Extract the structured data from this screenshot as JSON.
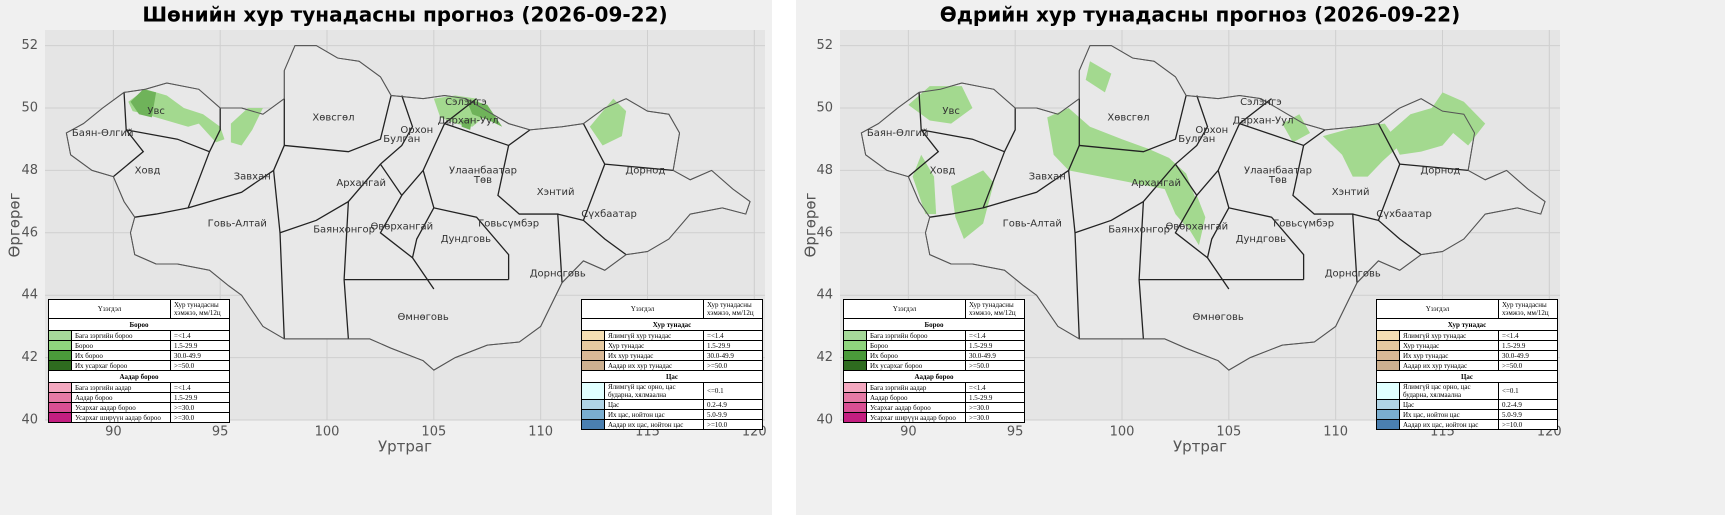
{
  "panels": [
    {
      "title": "Шөнийн хур тунадасны прогноз (2026-09-22)",
      "xlabel": "Уртраг",
      "ylabel": "Өргөрөг",
      "xlim": [
        86.8,
        120.5
      ],
      "ylim": [
        40,
        52.5
      ],
      "xticks": [
        90,
        95,
        100,
        105,
        110,
        115,
        120
      ],
      "yticks": [
        40,
        42,
        44,
        46,
        48,
        50,
        52
      ],
      "grid": true
    },
    {
      "title": "Өдрийн хур тунадасны прогноз (2026-09-22)",
      "xlabel": "Уртраг",
      "ylabel": "Өргөрөг",
      "xlim": [
        86.8,
        120.5
      ],
      "ylim": [
        40,
        52.5
      ],
      "xticks": [
        90,
        95,
        100,
        105,
        110,
        115,
        120
      ],
      "yticks": [
        40,
        42,
        44,
        46,
        48,
        50,
        52
      ],
      "grid": true
    }
  ],
  "regions": [
    "Увс",
    "Баян-Өлгий",
    "Ховд",
    "Завхан",
    "Хөвсгөл",
    "Сэлэнгэ",
    "Орхон",
    "Дархан-Уул",
    "Булган",
    "Архангай",
    "Улаанбаатар",
    "Төв",
    "Хэнтий",
    "Дорнод",
    "Сүхбаатар",
    "Говь-Алтай",
    "Баянхонгор",
    "Өвөрхангай",
    "Говьсүмбэр",
    "Дундговь",
    "Дорноговь",
    "Өмнөговь"
  ],
  "legend_rain": {
    "header": [
      "Үзэгдэл",
      "Хур тунадасны хэмжээ, мм/12ц"
    ],
    "groups": [
      {
        "title": "Бороо",
        "items": [
          {
            "label": "Бага зэргийн бороо",
            "range": "=<1.4",
            "color": "#a6d99a"
          },
          {
            "label": "Бороо",
            "range": "1.5-29.9",
            "color": "#8fd47e"
          },
          {
            "label": "Их бороо",
            "range": "30.0-49.9",
            "color": "#4a9a3a"
          },
          {
            "label": "Их усархаг бороо",
            "range": ">=50.0",
            "color": "#2e6b1f"
          }
        ]
      },
      {
        "title": "Аадар бороо",
        "items": [
          {
            "label": "Бага зэргийн аадар",
            "range": "=<1.4",
            "color": "#f4a8c0"
          },
          {
            "label": "Аадар бороо",
            "range": "1.5-29.9",
            "color": "#e57aa5"
          },
          {
            "label": "Усархаг аадар бороо",
            "range": ">=30.0",
            "color": "#d94f93"
          },
          {
            "label": "Усархаг ширүүн аадар бороо",
            "range": ">=30.0",
            "color": "#c41e80"
          }
        ]
      }
    ]
  },
  "legend_other": {
    "header": [
      "Үзэгдэл",
      "Хур тунадасны хэмжээ, мм/12ц"
    ],
    "groups": [
      {
        "title": "Хур тунадас",
        "items": [
          {
            "label": "Ялимгүй хур тунадас",
            "range": "=<1.4",
            "color": "#f5deb3"
          },
          {
            "label": "Хур тунадас",
            "range": "1.5-29.9",
            "color": "#e6c9a0"
          },
          {
            "label": "Их хур тунадас",
            "range": "30.0-49.9",
            "color": "#d9b896"
          },
          {
            "label": "Аадар их хур тунадас",
            "range": ">=50.0",
            "color": "#cdb090"
          }
        ]
      },
      {
        "title": "Цас",
        "items": [
          {
            "label": "Ялимгүй цас орно, цас бударна, хялмаална",
            "range": "<=0.1",
            "color": "#e0ffff"
          },
          {
            "label": "Цас",
            "range": "0.2-4.9",
            "color": "#b0d4e6"
          },
          {
            "label": "Их цас, нойтон цас",
            "range": "5.0-9.9",
            "color": "#7aaed0"
          },
          {
            "label": "Аадар их цас, нойтон цас",
            "range": ">=10.0",
            "color": "#4a7fb0"
          }
        ]
      }
    ]
  }
}
